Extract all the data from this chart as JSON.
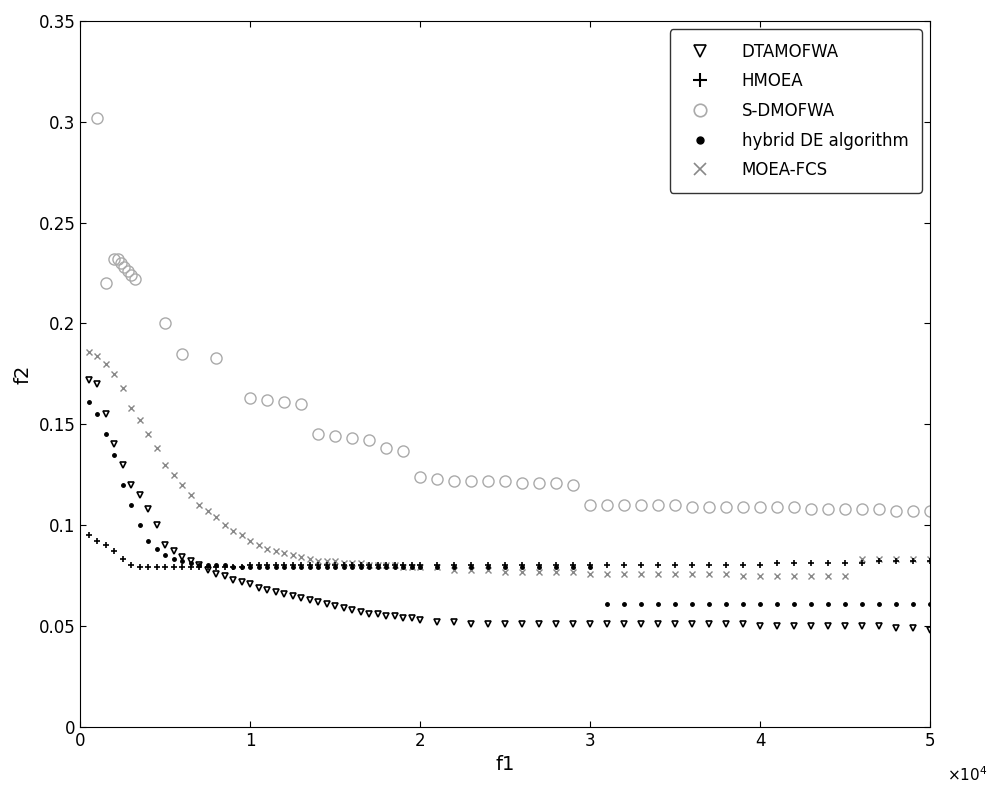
{
  "title": "",
  "xlabel": "f1",
  "ylabel": "f2",
  "xlim": [
    0,
    50000
  ],
  "ylim": [
    0,
    0.35
  ],
  "xticks": [
    0,
    10000,
    20000,
    30000,
    40000,
    50000
  ],
  "xtick_labels": [
    "0",
    "1",
    "2",
    "3",
    "4",
    "5"
  ],
  "yticks": [
    0,
    0.05,
    0.1,
    0.15,
    0.2,
    0.25,
    0.3,
    0.35
  ],
  "background_color": "#ffffff",
  "DTAMOFWA": {
    "color": "#000000",
    "marker": "v",
    "markersize": 5,
    "x": [
      500,
      1000,
      1500,
      2000,
      2500,
      3000,
      3500,
      4000,
      4500,
      5000,
      5500,
      6000,
      6500,
      7000,
      7500,
      8000,
      8500,
      9000,
      9500,
      10000,
      10500,
      11000,
      11500,
      12000,
      12500,
      13000,
      13500,
      14000,
      14500,
      15000,
      15500,
      16000,
      16500,
      17000,
      17500,
      18000,
      18500,
      19000,
      19500,
      20000,
      21000,
      22000,
      23000,
      24000,
      25000,
      26000,
      27000,
      28000,
      29000,
      30000,
      31000,
      32000,
      33000,
      34000,
      35000,
      36000,
      37000,
      38000,
      39000,
      40000,
      41000,
      42000,
      43000,
      44000,
      45000,
      46000,
      47000,
      48000,
      49000,
      50000
    ],
    "y": [
      0.172,
      0.17,
      0.155,
      0.14,
      0.13,
      0.12,
      0.115,
      0.108,
      0.1,
      0.09,
      0.087,
      0.084,
      0.082,
      0.08,
      0.078,
      0.076,
      0.075,
      0.073,
      0.072,
      0.071,
      0.069,
      0.068,
      0.067,
      0.066,
      0.065,
      0.064,
      0.063,
      0.062,
      0.061,
      0.06,
      0.059,
      0.058,
      0.057,
      0.056,
      0.056,
      0.055,
      0.055,
      0.054,
      0.054,
      0.053,
      0.052,
      0.052,
      0.051,
      0.051,
      0.051,
      0.051,
      0.051,
      0.051,
      0.051,
      0.051,
      0.051,
      0.051,
      0.051,
      0.051,
      0.051,
      0.051,
      0.051,
      0.051,
      0.051,
      0.05,
      0.05,
      0.05,
      0.05,
      0.05,
      0.05,
      0.05,
      0.05,
      0.049,
      0.049,
      0.048
    ]
  },
  "HMOEA": {
    "color": "#000000",
    "marker": "+",
    "markersize": 5,
    "x": [
      500,
      1000,
      1500,
      2000,
      2500,
      3000,
      3500,
      4000,
      4500,
      5000,
      5500,
      6000,
      6500,
      7000,
      7500,
      8000,
      8500,
      9000,
      9500,
      10000,
      10500,
      11000,
      11500,
      12000,
      12500,
      13000,
      13500,
      14000,
      14500,
      15000,
      15500,
      16000,
      16500,
      17000,
      17500,
      18000,
      18500,
      19000,
      19500,
      20000,
      21000,
      22000,
      23000,
      24000,
      25000,
      26000,
      27000,
      28000,
      29000,
      30000,
      31000,
      32000,
      33000,
      34000,
      35000,
      36000,
      37000,
      38000,
      39000,
      40000,
      41000,
      42000,
      43000,
      44000,
      45000,
      46000,
      47000,
      48000,
      49000,
      50000
    ],
    "y": [
      0.095,
      0.092,
      0.09,
      0.087,
      0.083,
      0.08,
      0.079,
      0.079,
      0.079,
      0.079,
      0.079,
      0.079,
      0.079,
      0.079,
      0.079,
      0.079,
      0.079,
      0.079,
      0.079,
      0.08,
      0.08,
      0.08,
      0.08,
      0.08,
      0.08,
      0.08,
      0.08,
      0.08,
      0.08,
      0.08,
      0.08,
      0.08,
      0.08,
      0.08,
      0.08,
      0.08,
      0.08,
      0.08,
      0.08,
      0.08,
      0.08,
      0.08,
      0.08,
      0.08,
      0.08,
      0.08,
      0.08,
      0.08,
      0.08,
      0.08,
      0.08,
      0.08,
      0.08,
      0.08,
      0.08,
      0.08,
      0.08,
      0.08,
      0.08,
      0.08,
      0.081,
      0.081,
      0.081,
      0.081,
      0.081,
      0.081,
      0.082,
      0.082,
      0.082,
      0.082
    ]
  },
  "S_DMOFWA": {
    "color": "#aaaaaa",
    "marker": "o",
    "markersize": 8,
    "x": [
      1000,
      1500,
      2000,
      2200,
      2400,
      2600,
      2800,
      3000,
      3200,
      5000,
      6000,
      8000,
      10000,
      11000,
      12000,
      13000,
      14000,
      15000,
      16000,
      17000,
      18000,
      19000,
      20000,
      21000,
      22000,
      23000,
      24000,
      25000,
      26000,
      27000,
      28000,
      29000,
      30000,
      31000,
      32000,
      33000,
      34000,
      35000,
      36000,
      37000,
      38000,
      39000,
      40000,
      41000,
      42000,
      43000,
      44000,
      45000,
      46000,
      47000,
      48000,
      49000,
      50000
    ],
    "y": [
      0.302,
      0.22,
      0.232,
      0.232,
      0.23,
      0.228,
      0.226,
      0.224,
      0.222,
      0.2,
      0.185,
      0.183,
      0.163,
      0.162,
      0.161,
      0.16,
      0.145,
      0.144,
      0.143,
      0.142,
      0.138,
      0.137,
      0.124,
      0.123,
      0.122,
      0.122,
      0.122,
      0.122,
      0.121,
      0.121,
      0.121,
      0.12,
      0.11,
      0.11,
      0.11,
      0.11,
      0.11,
      0.11,
      0.109,
      0.109,
      0.109,
      0.109,
      0.109,
      0.109,
      0.109,
      0.108,
      0.108,
      0.108,
      0.108,
      0.108,
      0.107,
      0.107,
      0.107
    ]
  },
  "hybrid_DE": {
    "color": "#000000",
    "marker": ".",
    "markersize": 5,
    "x": [
      500,
      1000,
      1500,
      2000,
      2500,
      3000,
      3500,
      4000,
      4500,
      5000,
      5500,
      6000,
      6500,
      7000,
      7500,
      8000,
      8500,
      9000,
      9500,
      10000,
      10500,
      11000,
      11500,
      12000,
      12500,
      13000,
      13500,
      14000,
      14500,
      15000,
      15500,
      16000,
      16500,
      17000,
      17500,
      18000,
      18500,
      19000,
      19500,
      20000,
      21000,
      22000,
      23000,
      24000,
      25000,
      26000,
      27000,
      28000,
      29000,
      30000,
      31000,
      32000,
      33000,
      34000,
      35000,
      36000,
      37000,
      38000,
      39000,
      40000,
      41000,
      42000,
      43000,
      44000,
      45000,
      46000,
      47000,
      48000,
      49000,
      50000
    ],
    "y": [
      0.161,
      0.155,
      0.145,
      0.135,
      0.12,
      0.11,
      0.1,
      0.092,
      0.088,
      0.085,
      0.083,
      0.082,
      0.081,
      0.08,
      0.08,
      0.08,
      0.08,
      0.079,
      0.079,
      0.079,
      0.079,
      0.079,
      0.079,
      0.079,
      0.079,
      0.079,
      0.079,
      0.079,
      0.079,
      0.079,
      0.079,
      0.079,
      0.079,
      0.079,
      0.079,
      0.079,
      0.079,
      0.079,
      0.079,
      0.079,
      0.079,
      0.079,
      0.079,
      0.079,
      0.079,
      0.079,
      0.079,
      0.079,
      0.079,
      0.079,
      0.061,
      0.061,
      0.061,
      0.061,
      0.061,
      0.061,
      0.061,
      0.061,
      0.061,
      0.061,
      0.061,
      0.061,
      0.061,
      0.061,
      0.061,
      0.061,
      0.061,
      0.061,
      0.061,
      0.061
    ]
  },
  "MOEA_FCS": {
    "color": "#888888",
    "marker": "x",
    "markersize": 5,
    "x": [
      500,
      1000,
      1500,
      2000,
      2500,
      3000,
      3500,
      4000,
      4500,
      5000,
      5500,
      6000,
      6500,
      7000,
      7500,
      8000,
      8500,
      9000,
      9500,
      10000,
      10500,
      11000,
      11500,
      12000,
      12500,
      13000,
      13500,
      14000,
      14500,
      15000,
      15500,
      16000,
      16500,
      17000,
      17500,
      18000,
      18500,
      19000,
      19500,
      20000,
      21000,
      22000,
      23000,
      24000,
      25000,
      26000,
      27000,
      28000,
      29000,
      30000,
      31000,
      32000,
      33000,
      34000,
      35000,
      36000,
      37000,
      38000,
      39000,
      40000,
      41000,
      42000,
      43000,
      44000,
      45000,
      46000,
      47000,
      48000,
      49000,
      50000
    ],
    "y": [
      0.186,
      0.184,
      0.18,
      0.175,
      0.168,
      0.158,
      0.152,
      0.145,
      0.138,
      0.13,
      0.125,
      0.12,
      0.115,
      0.11,
      0.107,
      0.104,
      0.1,
      0.097,
      0.095,
      0.092,
      0.09,
      0.088,
      0.087,
      0.086,
      0.085,
      0.084,
      0.083,
      0.082,
      0.082,
      0.082,
      0.081,
      0.081,
      0.081,
      0.08,
      0.08,
      0.08,
      0.08,
      0.079,
      0.079,
      0.079,
      0.079,
      0.078,
      0.078,
      0.078,
      0.077,
      0.077,
      0.077,
      0.077,
      0.077,
      0.076,
      0.076,
      0.076,
      0.076,
      0.076,
      0.076,
      0.076,
      0.076,
      0.076,
      0.075,
      0.075,
      0.075,
      0.075,
      0.075,
      0.075,
      0.075,
      0.083,
      0.083,
      0.083,
      0.083,
      0.083
    ]
  }
}
